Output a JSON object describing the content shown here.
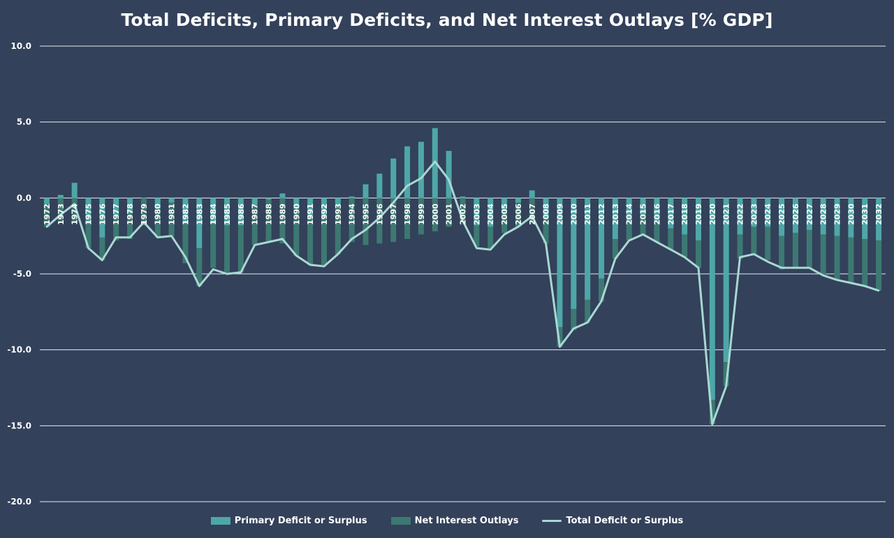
{
  "chart_data": {
    "type": "bar",
    "title": "Total Deficits, Primary Deficits, and Net Interest Outlays [% GDP]",
    "ylim": [
      -20,
      10
    ],
    "yticks": [
      "10.0",
      "5.0",
      "0.0",
      "-5.0",
      "-10.0",
      "-15.0",
      "-20.0"
    ],
    "ytick_values": [
      10,
      5,
      0,
      -5,
      -10,
      -15,
      -20
    ],
    "grid": true,
    "legend_position": "bottom",
    "colors": {
      "background": "#33415a",
      "primary": "#4ea7a7",
      "interest": "#3d7873",
      "total": "#a9d8d2",
      "grid": "#ffffff",
      "text": "#ffffff"
    },
    "categories": [
      "1972",
      "1973",
      "1974",
      "1975",
      "1976",
      "1977",
      "1978",
      "1979",
      "1980",
      "1981",
      "1982",
      "1983",
      "1984",
      "1985",
      "1986",
      "1987",
      "1988",
      "1989",
      "1990",
      "1991",
      "1992",
      "1993",
      "1994",
      "1995",
      "1996",
      "1997",
      "1998",
      "1999",
      "2000",
      "2001",
      "2002",
      "2003",
      "2004",
      "2005",
      "2006",
      "2007",
      "2008",
      "2009",
      "2010",
      "2011",
      "2012",
      "2013",
      "2014",
      "2015",
      "2016",
      "2017",
      "2018",
      "2019",
      "2020",
      "2021",
      "2022",
      "2023",
      "2024",
      "2025",
      "2026",
      "2027",
      "2028",
      "2029",
      "2030",
      "2031",
      "2032"
    ],
    "series": [
      {
        "name": "Primary Deficit or Surplus",
        "kind": "bar",
        "values": [
          -0.4,
          0.2,
          1.0,
          -1.7,
          -2.6,
          -1.2,
          -1.0,
          0.0,
          -0.7,
          -0.3,
          -1.7,
          -3.3,
          -1.7,
          -1.8,
          -1.8,
          -0.5,
          -0.1,
          0.3,
          -0.7,
          -1.4,
          -1.3,
          -0.5,
          0.1,
          0.9,
          1.6,
          2.6,
          3.4,
          3.7,
          4.6,
          3.1,
          0.1,
          -1.8,
          -1.9,
          -0.9,
          -0.3,
          0.5,
          -1.3,
          -8.5,
          -7.3,
          -6.7,
          -5.3,
          -2.7,
          -1.6,
          -1.2,
          -1.6,
          -2.0,
          -2.4,
          -2.8,
          -13.3,
          -10.8,
          -2.4,
          -1.9,
          -1.9,
          -2.5,
          -2.3,
          -2.1,
          -2.4,
          -2.5,
          -2.6,
          -2.7,
          -2.8
        ]
      },
      {
        "name": "Net Interest Outlays",
        "kind": "bar",
        "values": [
          -1.5,
          -1.5,
          -1.6,
          -1.6,
          -1.5,
          -1.6,
          -1.7,
          -1.8,
          -1.9,
          -2.2,
          -2.6,
          -2.5,
          -2.9,
          -3.1,
          -3.1,
          -2.6,
          -2.8,
          -3.0,
          -3.1,
          -3.0,
          -3.1,
          -3.2,
          -2.9,
          -3.1,
          -3.0,
          -2.9,
          -2.7,
          -2.4,
          -2.2,
          -1.9,
          -1.5,
          -1.4,
          -1.4,
          -1.4,
          -1.6,
          -1.7,
          -1.7,
          -1.3,
          -1.4,
          -1.5,
          -1.5,
          -1.3,
          -1.2,
          -1.2,
          -1.3,
          -1.4,
          -1.5,
          -1.8,
          -1.6,
          -1.6,
          -1.6,
          -1.8,
          -2.2,
          -2.2,
          -2.3,
          -2.5,
          -2.7,
          -2.9,
          -3.0,
          -3.1,
          -3.3
        ]
      },
      {
        "name": "Total Deficit or Surplus",
        "kind": "line",
        "values": [
          -1.9,
          -1.1,
          -0.4,
          -3.3,
          -4.1,
          -2.6,
          -2.6,
          -1.6,
          -2.6,
          -2.5,
          -3.9,
          -5.8,
          -4.7,
          -5.0,
          -4.9,
          -3.1,
          -2.9,
          -2.7,
          -3.8,
          -4.4,
          -4.5,
          -3.7,
          -2.7,
          -2.1,
          -1.3,
          -0.3,
          0.8,
          1.3,
          2.4,
          1.2,
          -1.5,
          -3.3,
          -3.4,
          -2.4,
          -1.9,
          -1.2,
          -3.0,
          -9.8,
          -8.6,
          -8.2,
          -6.8,
          -4.0,
          -2.8,
          -2.4,
          -2.9,
          -3.4,
          -3.9,
          -4.6,
          -14.9,
          -12.4,
          -3.9,
          -3.7,
          -4.2,
          -4.6,
          -4.6,
          -4.6,
          -5.1,
          -5.4,
          -5.6,
          -5.8,
          -6.1
        ]
      }
    ]
  }
}
